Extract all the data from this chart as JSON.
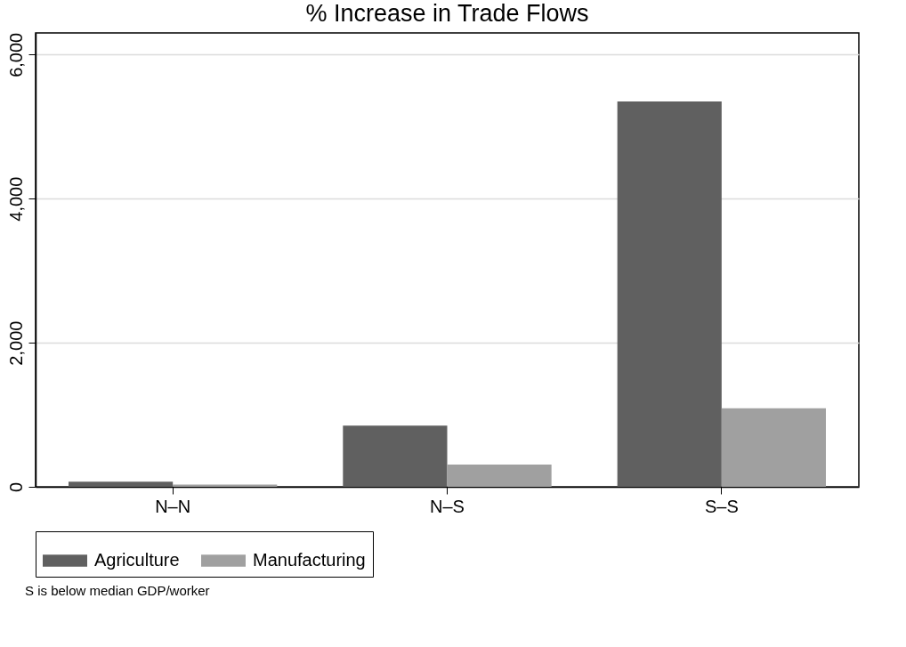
{
  "chart_data": {
    "type": "bar",
    "title": "% Increase in Trade Flows",
    "categories": [
      "N–N",
      "N–S",
      "S–S"
    ],
    "series": [
      {
        "name": "Agriculture",
        "color": "#606060",
        "values": [
          70,
          850,
          5350
        ]
      },
      {
        "name": "Manufacturing",
        "color": "#a0a0a0",
        "values": [
          30,
          310,
          1090
        ]
      }
    ],
    "ylim": [
      0,
      6300
    ],
    "yticks": [
      {
        "value": 0,
        "label": "0"
      },
      {
        "value": 2000,
        "label": "2,000"
      },
      {
        "value": 4000,
        "label": "4,000"
      },
      {
        "value": 6000,
        "label": "6,000"
      }
    ],
    "grid": "y",
    "legend": "bottom",
    "annotations": [
      "S is below median GDP/worker"
    ]
  }
}
